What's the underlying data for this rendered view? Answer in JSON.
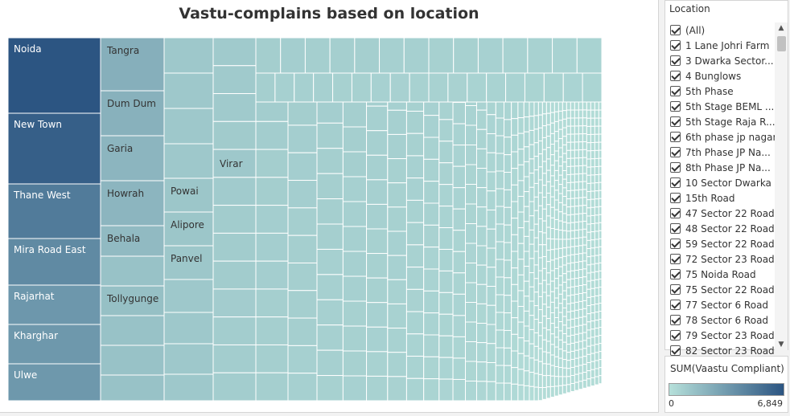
{
  "chart_data": {
    "type": "treemap",
    "title": "Vastu-complains based on location",
    "measure": "SUM(Vaastu Compliant)",
    "color_range": [
      0,
      6849
    ],
    "color_scale": [
      "#b6e0da",
      "#2c5582"
    ],
    "labeled_tiles": [
      {
        "name": "Noida",
        "value": 6849
      },
      {
        "name": "New Town",
        "value": 6350
      },
      {
        "name": "Thane West",
        "value": 5000
      },
      {
        "name": "Mira Road East",
        "value": 4250
      },
      {
        "name": "Rajarhat",
        "value": 3600
      },
      {
        "name": "Kharghar",
        "value": 3550
      },
      {
        "name": "Ulwe",
        "value": 3550
      },
      {
        "name": "Tangra",
        "value": 2400
      },
      {
        "name": "Dum Dum",
        "value": 2300
      },
      {
        "name": "Garia",
        "value": 2100
      },
      {
        "name": "Howrah",
        "value": 2100
      },
      {
        "name": "Behala",
        "value": 1850
      },
      {
        "name": "Tollygunge",
        "value": 1600
      },
      {
        "name": "Powai",
        "value": 1300
      },
      {
        "name": "Alipore",
        "value": 1300
      },
      {
        "name": "Panvel",
        "value": 1250
      },
      {
        "name": "Virar",
        "value": 1200
      }
    ]
  },
  "filter": {
    "title": "Location",
    "items": [
      "(All)",
      "1 Lane Johri Farm",
      "3 Dwarka Sector...",
      "4 Bunglows",
      "5th Phase",
      "5th Stage BEML ...",
      "5th Stage Raja R...",
      "6th phase jp nagar",
      "7th Phase JP Na...",
      "8th Phase JP Na...",
      "10 Sector Dwarka",
      "15th Road",
      "47 Sector 22 Road",
      "48 Sector 22 Road",
      "59 Sector 22 Road",
      "72 Sector 23 Road",
      "75 Noida Road",
      "75 Sector 22 Road",
      "77 Sector 6 Road",
      "78 Sector 6 Road",
      "79 Sector 23 Road",
      "82 Sector 23 Road"
    ]
  },
  "legend": {
    "title": "SUM(Vaastu Compliant)",
    "min_label": "0",
    "max_label": "6,849"
  },
  "icons": {
    "scroll_up": "chevron-up-icon",
    "scroll_down": "chevron-down-icon",
    "checkbox": "checkbox-checked-icon"
  }
}
